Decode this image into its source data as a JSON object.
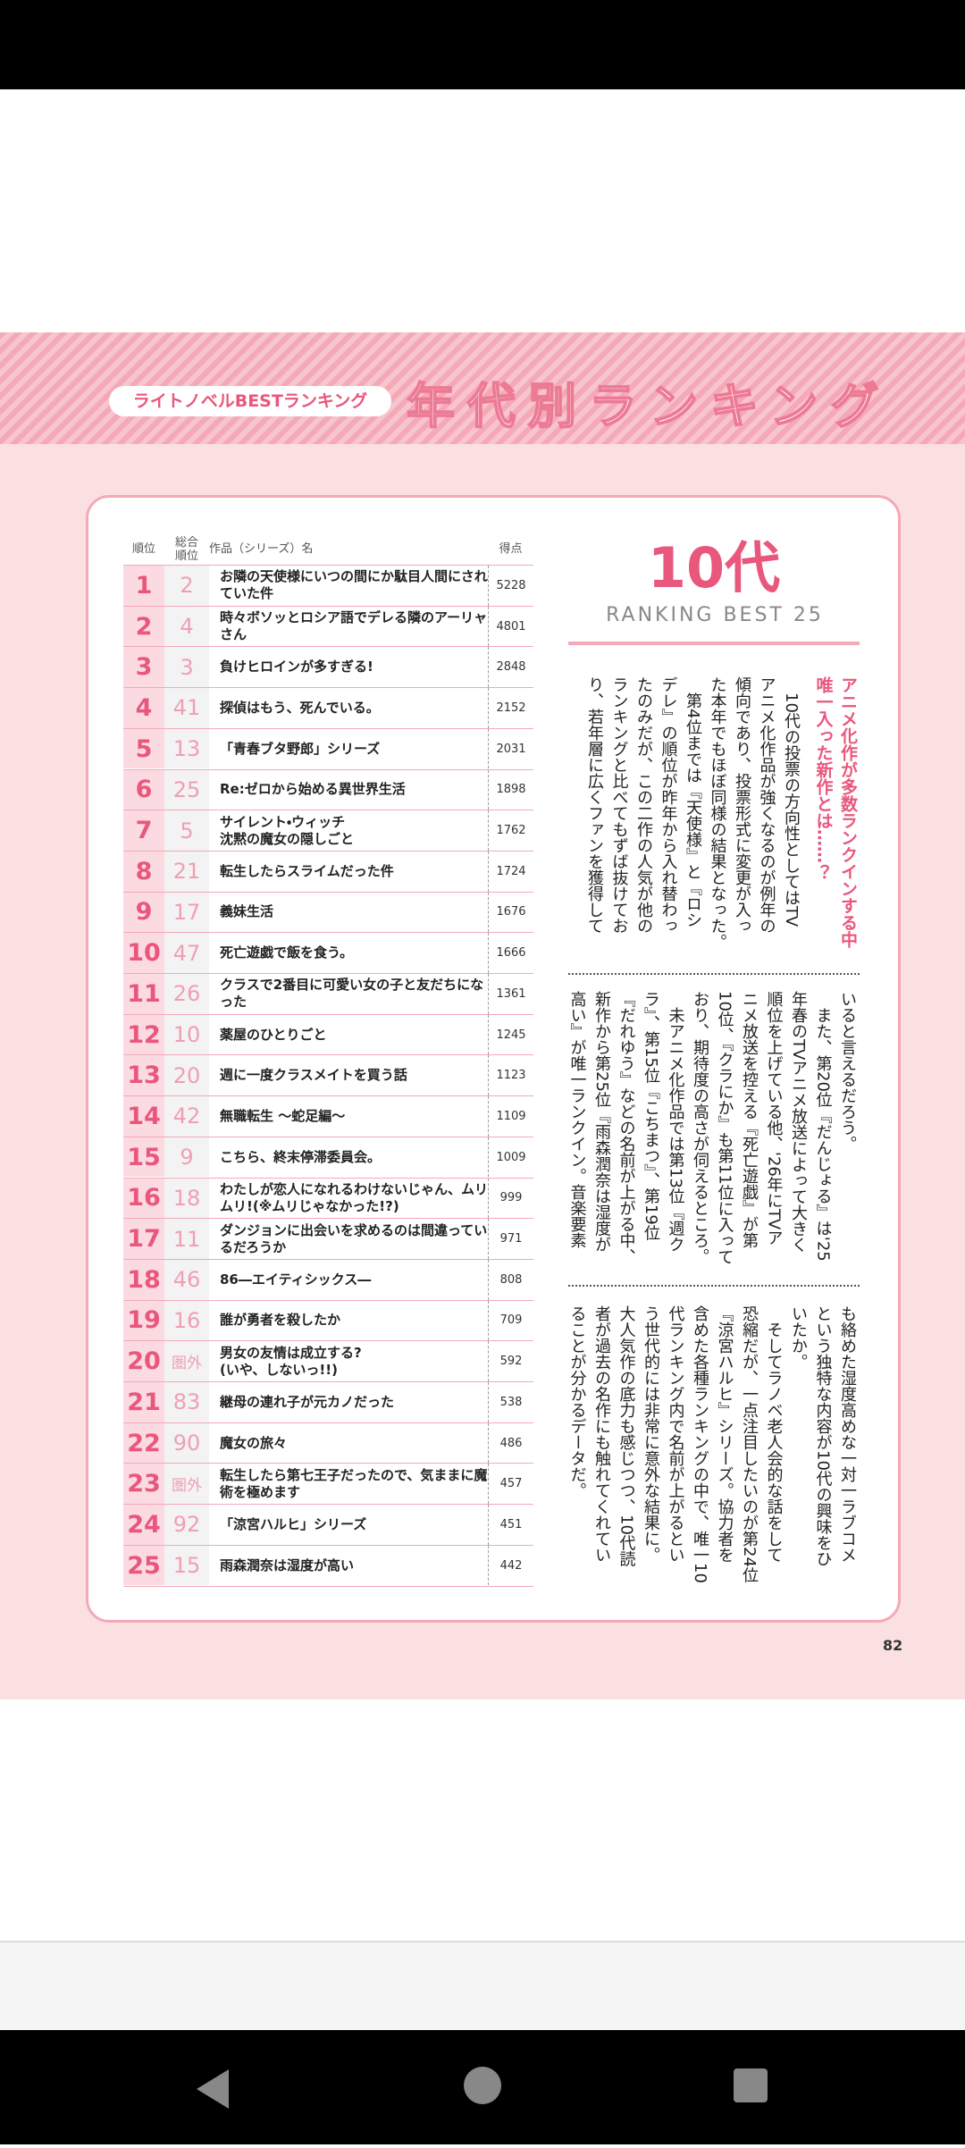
{
  "header": {
    "badge": "ライトノベルBESTランキング",
    "title": "年代別ランキング"
  },
  "table": {
    "columns": [
      "順位",
      "総合\n順位",
      "作品（シリーズ）名",
      "得点"
    ],
    "rows": [
      [
        1,
        2,
        "お隣の天使様にいつの間にか駄目人間にされていた件",
        5228
      ],
      [
        2,
        4,
        "時々ボソッとロシア語でデレる隣のアーリャさん",
        4801
      ],
      [
        3,
        3,
        "負けヒロインが多すぎる!",
        2848
      ],
      [
        4,
        41,
        "探偵はもう、死んでいる。",
        2152
      ],
      [
        5,
        13,
        "「青春ブタ野郎」シリーズ",
        2031
      ],
      [
        6,
        25,
        "Re:ゼロから始める異世界生活",
        1898
      ],
      [
        7,
        5,
        "サイレント・ウィッチ\n沈黙の魔女の隠しごと",
        1762
      ],
      [
        8,
        21,
        "転生したらスライムだった件",
        1724
      ],
      [
        9,
        17,
        "義妹生活",
        1676
      ],
      [
        10,
        47,
        "死亡遊戯で飯を食う。",
        1666
      ],
      [
        11,
        26,
        "クラスで2番目に可愛い女の子と友だちになった",
        1361
      ],
      [
        12,
        10,
        "薬屋のひとりごと",
        1245
      ],
      [
        13,
        20,
        "週に一度クラスメイトを買う話",
        1123
      ],
      [
        14,
        42,
        "無職転生 ～蛇足編～",
        1109
      ],
      [
        15,
        9,
        "こちら、終末停滞委員会。",
        1009
      ],
      [
        16,
        18,
        "わたしが恋人になれるわけないじゃん、ムリムリ!(※ムリじゃなかった!?)",
        999
      ],
      [
        17,
        11,
        "ダンジョンに出会いを求めるのは間違っているだろうか",
        971
      ],
      [
        18,
        46,
        "86―エイティシックス―",
        808
      ],
      [
        19,
        16,
        "誰が勇者を殺したか",
        709
      ],
      [
        20,
        "圏外",
        "男女の友情は成立する?\n(いや、しないっ!!)",
        592
      ],
      [
        21,
        83,
        "継母の連れ子が元カノだった",
        538
      ],
      [
        22,
        90,
        "魔女の旅々",
        486
      ],
      [
        23,
        "圏外",
        "転生したら第七王子だったので、気ままに魔術を極めます",
        457
      ],
      [
        24,
        92,
        "「涼宮ハルヒ」シリーズ",
        451
      ],
      [
        25,
        15,
        "雨森潤奈は湿度が高い",
        442
      ]
    ]
  },
  "section": {
    "title": "10代",
    "subtitle": "RANKING BEST 25",
    "heading": [
      "アニメ化作が多数ランクインする中",
      "唯一入った新作とは……？"
    ],
    "blocks": [
      [
        "　10代の投票の方向性としてはTV",
        "アニメ化作品が強くなるのが例年の",
        "傾向であり、投票形式に変更が入っ",
        "た本年でもほぼ同様の結果となった。",
        "　第4位までは『天使様』と『ロシ",
        "デレ』の順位が昨年から入れ替わっ",
        "たのみだが、この二作の人気が他の",
        "ランキングと比べてもずば抜けてお",
        "り、若年層に広くファンを獲得して"
      ],
      [
        "いると言えるだろう。",
        "　また、第20位『だんじょる』は'25",
        "年春のTVアニメ放送によって大きく",
        "順位を上げている他、'26年にTVア",
        "ニメ放送を控える『死亡遊戯』が第",
        "10位、『クラにか』も第11位に入って",
        "おり、期待度の高さが伺えるところ。",
        "　未アニメ化作品では第13位『週ク",
        "ラ』、第15位『こちまつ』、第19位",
        "『だれゆう』などの名前が上がる中、",
        "新作から第25位『雨森潤奈は湿度が",
        "高い』が唯一ランクイン。音楽要素"
      ],
      [
        "も絡めた湿度高めな一対一ラブコメ",
        "という独特な内容が10代の興味をひ",
        "いたか。",
        "　そしてラノベ老人会的な話をして",
        "恐縮だが、一点注目したいのが第24位",
        "『涼宮ハルヒ』シリーズ。協力者を",
        "含めた各種ランキングの中で、唯一10",
        "代ランキング内で名前が上がるとい",
        "う世代的には非常に意外な結果に。",
        "大人気作の底力も感じつつ、10代読",
        "者が過去の名作にも触れてくれてい",
        "ることが分かるデータだ。"
      ]
    ]
  },
  "page_number": "82"
}
